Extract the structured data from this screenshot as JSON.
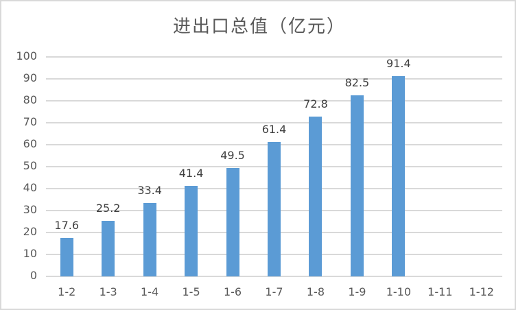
{
  "chart_data": {
    "type": "bar",
    "title": "进出口总值（亿元）",
    "xlabel": "",
    "ylabel": "",
    "categories": [
      "1-2",
      "1-3",
      "1-4",
      "1-5",
      "1-6",
      "1-7",
      "1-8",
      "1-9",
      "1-10",
      "1-11",
      "1-12"
    ],
    "values": [
      17.6,
      25.2,
      33.4,
      41.4,
      49.5,
      61.4,
      72.8,
      82.5,
      91.4,
      null,
      null
    ],
    "data_labels": [
      "17.6",
      "25.2",
      "33.4",
      "41.4",
      "49.5",
      "61.4",
      "72.8",
      "82.5",
      "91.4",
      "",
      ""
    ],
    "ylim": [
      0,
      100
    ],
    "yticks": [
      0,
      10,
      20,
      30,
      40,
      50,
      60,
      70,
      80,
      90,
      100
    ],
    "grid": true,
    "legend": null,
    "bar_color": "#5b9bd5"
  },
  "colors": {
    "bar": "#5b9bd5",
    "grid": "#d9d9d9",
    "text": "#595959",
    "label": "#404040",
    "border": "#d9d9d9"
  }
}
